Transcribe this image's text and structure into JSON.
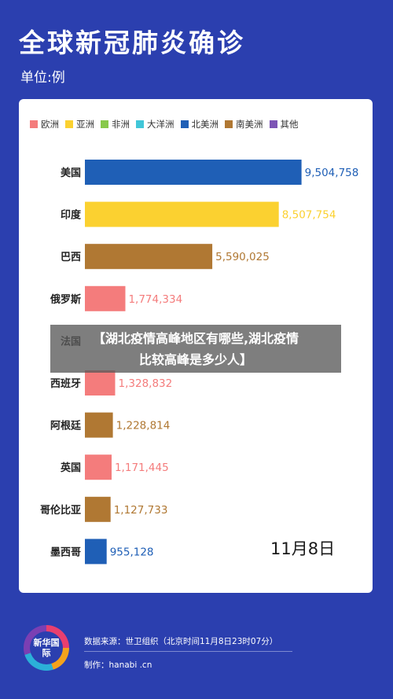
{
  "header": {
    "title": "全球新冠肺炎确诊",
    "unit": "单位:例"
  },
  "legend": [
    {
      "label": "欧洲",
      "color": "#f47c7c"
    },
    {
      "label": "亚洲",
      "color": "#fbd130"
    },
    {
      "label": "非洲",
      "color": "#88c94b"
    },
    {
      "label": "大洋洲",
      "color": "#41c6d8"
    },
    {
      "label": "北美洲",
      "color": "#1f5fb6"
    },
    {
      "label": "南美洲",
      "color": "#b07833"
    },
    {
      "label": "其他",
      "color": "#7d55b5"
    }
  ],
  "chart_data": {
    "type": "bar",
    "orientation": "horizontal",
    "categories": [
      "美国",
      "印度",
      "巴西",
      "俄罗斯",
      "法国",
      "西班牙",
      "阿根廷",
      "英国",
      "哥伦比亚",
      "墨西哥"
    ],
    "values": [
      9504758,
      8507754,
      5590025,
      1774334,
      null,
      1328832,
      1228814,
      1171445,
      1127733,
      955128
    ],
    "value_labels": [
      "9,504,758",
      "8,507,754",
      "5,590,025",
      "1,774,334",
      "",
      "1,328,832",
      "1,228,814",
      "1,171,445",
      "1,127,733",
      "955,128"
    ],
    "regions": [
      "北美洲",
      "亚洲",
      "南美洲",
      "欧洲",
      "欧洲",
      "欧洲",
      "南美洲",
      "欧洲",
      "南美洲",
      "北美洲"
    ],
    "bar_colors": [
      "#1f5fb6",
      "#fbd130",
      "#b07833",
      "#f47c7c",
      "#f47c7c",
      "#f47c7c",
      "#b07833",
      "#f47c7c",
      "#b07833",
      "#1f5fb6"
    ],
    "label_colors": [
      "#1f5fb6",
      "#fbd130",
      "#b07833",
      "#f47c7c",
      "#f47c7c",
      "#f47c7c",
      "#b07833",
      "#f47c7c",
      "#b07833",
      "#1f5fb6"
    ],
    "xlim": [
      0,
      10000000
    ],
    "grid": false,
    "legend_position": "top"
  },
  "date_label": "11月8日",
  "banner": {
    "line1": "【湖北疫情高峰地区有哪些,湖北疫情",
    "line2": "比较高峰是多少人】"
  },
  "footer": {
    "logo_text": "新华国际",
    "source": "数据来源：世卫组织（北京时间11月8日23时07分）",
    "maker": "制作：hanabi .cn"
  }
}
